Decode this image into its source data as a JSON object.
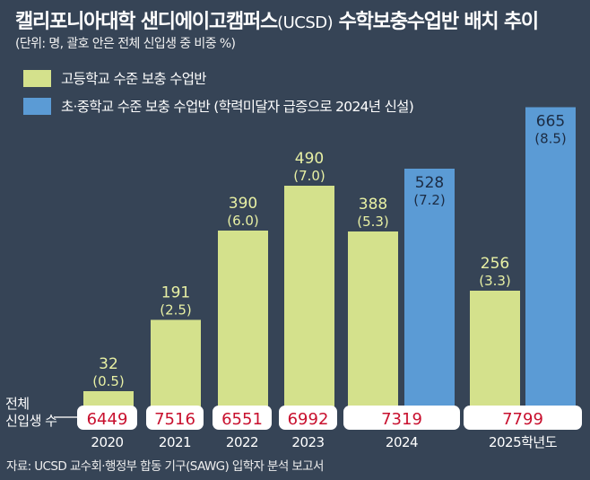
{
  "header": {
    "title_part1": "캘리포니아대학 샌디에이고캠퍼스",
    "title_part2": "(UCSD)",
    "title_part3": " 수학보충수업반 배치 추이",
    "subtitle": "(단위: 명, 괄호 안은 전체 신입생 중 비중 %)"
  },
  "row_label_line1": "전체",
  "row_label_line2": "신입생 수",
  "source": "자료: UCSD 교수회·행정부 합동 기구(SAWG) 입학자 분석 보고서",
  "colors": {
    "background": "#364456",
    "high_school": "#d4e18c",
    "elementary": "#5b9bd5",
    "enrollment_text": "#c8102e"
  },
  "chart_data": {
    "type": "bar",
    "title": "캘리포니아대학 샌디에이고캠퍼스(UCSD) 수학보충수업반 배치 추이",
    "subtitle": "(단위: 명, 괄호 안은 전체 신입생 중 비중 %)",
    "categories": [
      "2020",
      "2021",
      "2022",
      "2023",
      "2024",
      "2025학년도"
    ],
    "series": [
      {
        "name": "고등학교 수준 보충 수업반",
        "color": "#d4e18c",
        "values": [
          32,
          191,
          390,
          490,
          388,
          256
        ],
        "labels": [
          "32",
          "191",
          "390",
          "490",
          "388",
          "256"
        ],
        "percents": [
          "(0.5)",
          "(2.5)",
          "(6.0)",
          "(7.0)",
          "(5.3)",
          "(3.3)"
        ]
      },
      {
        "name": "초·중학교 수준 보충 수업반 (학력미달자 급증으로 2024년 신설)",
        "color": "#5b9bd5",
        "values": [
          null,
          null,
          null,
          null,
          528,
          665
        ],
        "labels": [
          "",
          "",
          "",
          "",
          "528",
          "665"
        ],
        "percents": [
          "",
          "",
          "",
          "",
          "(7.2)",
          "(8.5)"
        ]
      }
    ],
    "total_freshmen": [
      "6449",
      "7516",
      "6551",
      "6992",
      "7319",
      "7799"
    ],
    "legend_position": "top-left",
    "grid": false,
    "ylim": [
      0,
      700
    ]
  }
}
